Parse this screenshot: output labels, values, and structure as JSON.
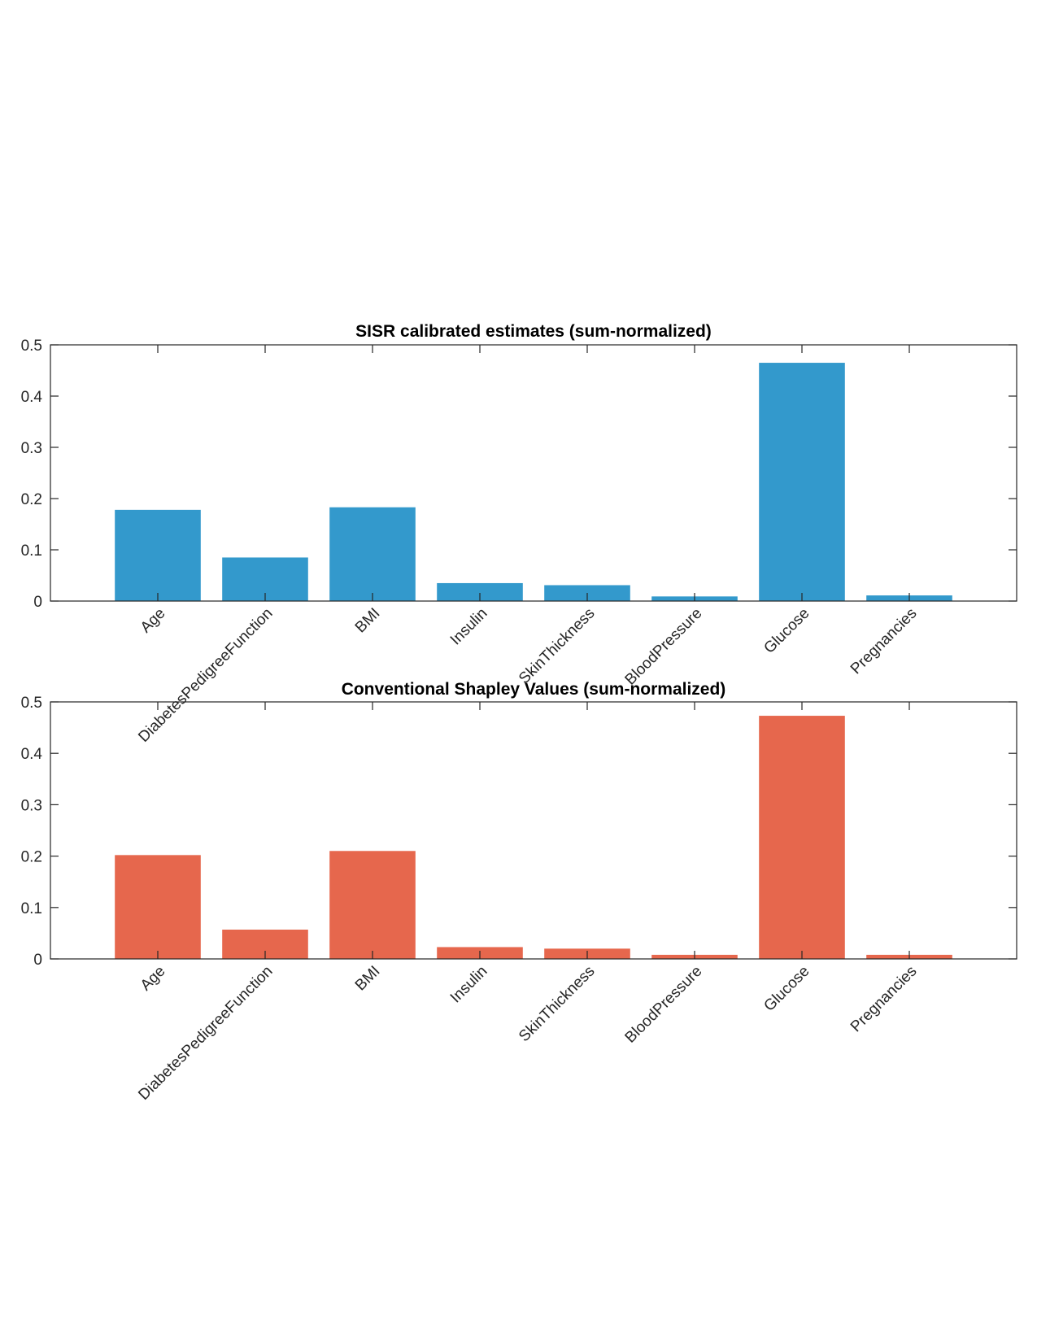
{
  "chart_data": [
    {
      "type": "bar",
      "title": "SISR calibrated estimates (sum-normalized)",
      "xlabel": "",
      "ylabel": "",
      "categories": [
        "Age",
        "DiabetesPedigreeFunction",
        "BMI",
        "Insulin",
        "SkinThickness",
        "BloodPressure",
        "Glucose",
        "Pregnancies"
      ],
      "values": [
        0.178,
        0.085,
        0.183,
        0.035,
        0.031,
        0.009,
        0.465,
        0.011
      ],
      "ylim": [
        0,
        0.5
      ],
      "yticks": [
        0,
        0.1,
        0.2,
        0.3,
        0.4,
        0.5
      ],
      "ytick_labels": [
        "0",
        "0.1",
        "0.2",
        "0.3",
        "0.4",
        "0.5"
      ],
      "color": "#3399CC",
      "grid": false
    },
    {
      "type": "bar",
      "title": "Conventional Shapley Values (sum-normalized)",
      "xlabel": "",
      "ylabel": "",
      "categories": [
        "Age",
        "DiabetesPedigreeFunction",
        "BMI",
        "Insulin",
        "SkinThickness",
        "BloodPressure",
        "Glucose",
        "Pregnancies"
      ],
      "values": [
        0.202,
        0.057,
        0.21,
        0.023,
        0.02,
        0.008,
        0.473,
        0.008
      ],
      "ylim": [
        0,
        0.5
      ],
      "yticks": [
        0,
        0.1,
        0.2,
        0.3,
        0.4,
        0.5
      ],
      "ytick_labels": [
        "0",
        "0.1",
        "0.2",
        "0.3",
        "0.4",
        "0.5"
      ],
      "color": "#E6674D",
      "grid": false
    }
  ]
}
